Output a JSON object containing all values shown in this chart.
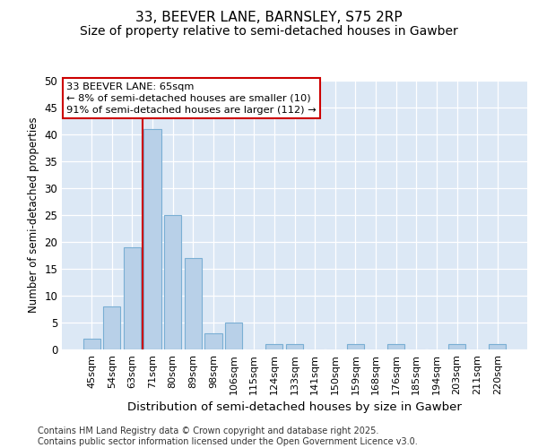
{
  "title_line1": "33, BEEVER LANE, BARNSLEY, S75 2RP",
  "title_line2": "Size of property relative to semi-detached houses in Gawber",
  "xlabel": "Distribution of semi-detached houses by size in Gawber",
  "ylabel": "Number of semi-detached properties",
  "categories": [
    "45sqm",
    "54sqm",
    "63sqm",
    "71sqm",
    "80sqm",
    "89sqm",
    "98sqm",
    "106sqm",
    "115sqm",
    "124sqm",
    "133sqm",
    "141sqm",
    "150sqm",
    "159sqm",
    "168sqm",
    "176sqm",
    "185sqm",
    "194sqm",
    "203sqm",
    "211sqm",
    "220sqm"
  ],
  "values": [
    2,
    8,
    19,
    41,
    25,
    17,
    3,
    5,
    0,
    1,
    1,
    0,
    0,
    1,
    0,
    1,
    0,
    0,
    1,
    0,
    1
  ],
  "bar_color": "#b8d0e8",
  "bar_edge_color": "#7aafd4",
  "vline_x_index": 2.5,
  "vline_color": "#cc0000",
  "annotation_title": "33 BEEVER LANE: 65sqm",
  "annotation_line1": "← 8% of semi-detached houses are smaller (10)",
  "annotation_line2": "91% of semi-detached houses are larger (112) →",
  "annotation_box_color": "#ffffff",
  "annotation_box_edge_color": "#cc0000",
  "ylim": [
    0,
    50
  ],
  "yticks": [
    0,
    5,
    10,
    15,
    20,
    25,
    30,
    35,
    40,
    45,
    50
  ],
  "bg_color": "#dce8f5",
  "grid_color": "#ffffff",
  "footer": "Contains HM Land Registry data © Crown copyright and database right 2025.\nContains public sector information licensed under the Open Government Licence v3.0.",
  "title_fontsize": 11,
  "subtitle_fontsize": 10,
  "footer_fontsize": 7
}
